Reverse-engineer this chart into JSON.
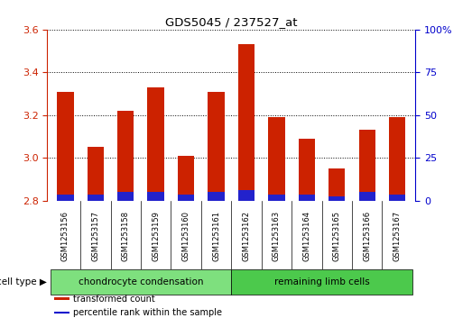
{
  "title": "GDS5045 / 237527_at",
  "samples": [
    "GSM1253156",
    "GSM1253157",
    "GSM1253158",
    "GSM1253159",
    "GSM1253160",
    "GSM1253161",
    "GSM1253162",
    "GSM1253163",
    "GSM1253164",
    "GSM1253165",
    "GSM1253166",
    "GSM1253167"
  ],
  "red_values": [
    3.31,
    3.05,
    3.22,
    3.33,
    3.01,
    3.31,
    3.53,
    3.19,
    3.09,
    2.95,
    3.13,
    3.19
  ],
  "blue_values": [
    2.83,
    2.83,
    2.84,
    2.84,
    2.83,
    2.84,
    2.85,
    2.83,
    2.83,
    2.82,
    2.84,
    2.83
  ],
  "base": 2.8,
  "ylim_left": [
    2.8,
    3.6
  ],
  "ylim_right": [
    0,
    100
  ],
  "yticks_left": [
    2.8,
    3.0,
    3.2,
    3.4,
    3.6
  ],
  "yticks_right": [
    0,
    25,
    50,
    75,
    100
  ],
  "ytick_labels_right": [
    "0",
    "25",
    "50",
    "75",
    "100%"
  ],
  "groups": [
    {
      "label": "chondrocyte condensation",
      "start": 0,
      "end": 6,
      "color": "#7EE07E"
    },
    {
      "label": "remaining limb cells",
      "start": 6,
      "end": 12,
      "color": "#4CC94C"
    }
  ],
  "cell_type_label": "cell type",
  "legend": [
    {
      "label": "transformed count",
      "color": "#CC2200"
    },
    {
      "label": "percentile rank within the sample",
      "color": "#0000CC"
    }
  ],
  "bar_color_red": "#CC2200",
  "bar_color_blue": "#2222CC",
  "plot_bg": "#FFFFFF",
  "left_tick_color": "#CC2200",
  "right_tick_color": "#0000CC",
  "xtick_bg": "#C8C8C8",
  "bar_width": 0.55
}
